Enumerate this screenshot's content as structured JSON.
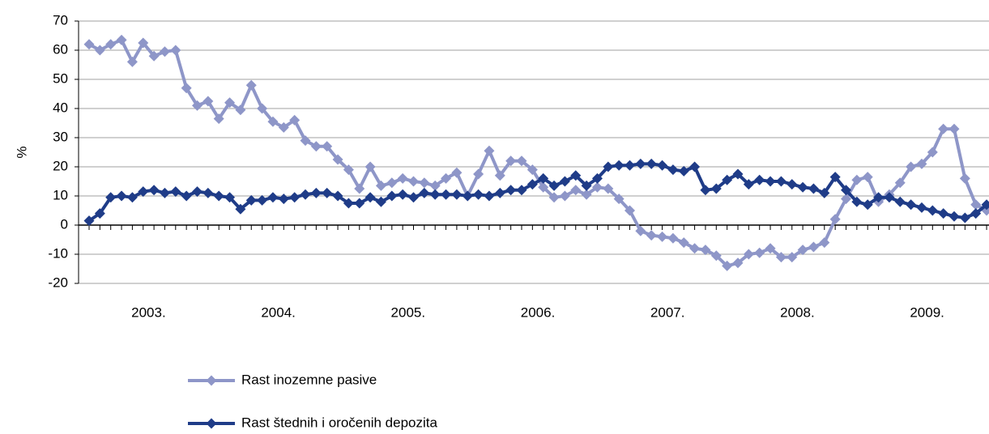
{
  "chart_data": {
    "type": "line",
    "ylabel": "%",
    "ylim": [
      -20,
      70
    ],
    "yticks": [
      -20,
      -10,
      0,
      10,
      20,
      30,
      40,
      50,
      60,
      70
    ],
    "grid": true,
    "categories": [
      null,
      null,
      null,
      null,
      null,
      null,
      null,
      null,
      null,
      null,
      null,
      null,
      null,
      null,
      null,
      null,
      null,
      null,
      null,
      null,
      null,
      null,
      null,
      null,
      null,
      null,
      null,
      null,
      null,
      null,
      null,
      null,
      null,
      null,
      null,
      null,
      null,
      null,
      null,
      null,
      null,
      null,
      null,
      null,
      null,
      null,
      null,
      null,
      null,
      null,
      null,
      null,
      null,
      null,
      null,
      null,
      null,
      null,
      null,
      null,
      null,
      null,
      null,
      null,
      null,
      null,
      null,
      null,
      null,
      null,
      null,
      null,
      null,
      null,
      null,
      null,
      null,
      null,
      null,
      null,
      null,
      null,
      null,
      null
    ],
    "year_labels": [
      "2003.",
      "2004.",
      "2005.",
      "2006.",
      "2007.",
      "2008.",
      "2009."
    ],
    "legend": "bottom",
    "series": [
      {
        "name": "Rast inozemne pasive",
        "color": "#8e96c8",
        "values": [
          62,
          60,
          62,
          63.5,
          56,
          62.5,
          58,
          59.5,
          60,
          47,
          41,
          42.5,
          36.5,
          42,
          39.5,
          48,
          40,
          35.5,
          33.5,
          36,
          29,
          27,
          27,
          22.5,
          19,
          12.5,
          20,
          13.5,
          14.5,
          16,
          15,
          14.5,
          13.5,
          16,
          18,
          10,
          17.5,
          25.5,
          17,
          22,
          22,
          19,
          13,
          9.5,
          10,
          12,
          10.5,
          13,
          12.5,
          9,
          5,
          -2,
          -3.5,
          -4,
          -4.5,
          -6,
          -8,
          -8.5,
          -10.5,
          -14,
          -13,
          -10,
          -9.5,
          -8,
          -11,
          -11,
          -8.5,
          -7.5,
          -6,
          2,
          9,
          15.5,
          16.5,
          8,
          10.5,
          14.5,
          20,
          21,
          25,
          33,
          33,
          16,
          7,
          5
        ]
      },
      {
        "name": "Rast štednih i oročenih depozita",
        "color": "#1f3c88",
        "values": [
          1.5,
          4,
          9.5,
          10,
          9.5,
          11.5,
          12,
          11,
          11.5,
          10,
          11.5,
          11,
          10,
          9.5,
          5.5,
          8.5,
          8.5,
          9.5,
          9,
          9.5,
          10.5,
          11,
          11,
          10,
          7.5,
          7.5,
          9.5,
          8,
          10,
          10.5,
          9.5,
          11,
          10.5,
          10.5,
          10.5,
          10,
          10.5,
          10,
          11,
          12,
          12,
          14,
          16,
          13.5,
          15,
          17,
          13.5,
          16,
          20,
          20.5,
          20.5,
          21,
          21,
          20.5,
          19,
          18.5,
          20,
          12,
          12.5,
          15.5,
          17.5,
          14,
          15.5,
          15,
          15,
          14,
          13,
          12.5,
          11,
          16.5,
          12,
          8,
          7,
          9.5,
          9.5,
          8,
          7,
          6,
          5,
          4,
          3,
          2.5,
          4,
          7
        ]
      }
    ]
  }
}
